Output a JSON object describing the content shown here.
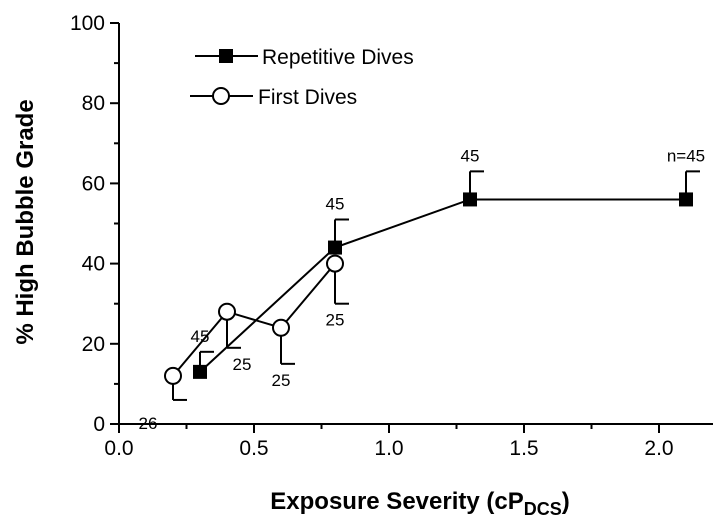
{
  "chart_data": {
    "type": "line",
    "title": "",
    "xlabel": "Exposure Severity (cP",
    "xlabel_subscript": "DCS",
    "xlabel_suffix": ")",
    "ylabel": "% High Bubble Grade",
    "xlim": [
      0.0,
      2.2
    ],
    "ylim": [
      0,
      100
    ],
    "x_ticks": [
      0.0,
      0.5,
      1.0,
      1.5,
      2.0
    ],
    "x_tick_labels": [
      "0.0",
      "0.5",
      "1.0",
      "1.5",
      "2.0"
    ],
    "y_ticks": [
      0,
      20,
      40,
      60,
      80,
      100
    ],
    "y_tick_labels": [
      "0",
      "20",
      "40",
      "60",
      "80",
      "100"
    ],
    "grid": false,
    "legend_position": "top-left",
    "series": [
      {
        "name": "Repetitive Dives",
        "marker": "filled-square",
        "x": [
          0.3,
          0.8,
          1.3,
          2.1
        ],
        "y": [
          13,
          44,
          56,
          56
        ],
        "error_upper": [
          18,
          51,
          63,
          63
        ],
        "n_labels": [
          {
            "x": 0.3,
            "label": "45",
            "side": "above"
          },
          {
            "x": 0.8,
            "label": "45",
            "side": "above"
          },
          {
            "x": 1.3,
            "label": "45",
            "side": "above"
          },
          {
            "x": 2.1,
            "label": "n=45",
            "side": "above"
          }
        ]
      },
      {
        "name": "First Dives",
        "marker": "open-circle",
        "x": [
          0.2,
          0.4,
          0.6,
          0.8
        ],
        "y": [
          12,
          28,
          24,
          40
        ],
        "error_lower": [
          6,
          19,
          15,
          30
        ],
        "n_labels": [
          {
            "x": 0.2,
            "label": "26",
            "side": "below"
          },
          {
            "x": 0.4,
            "label": "25",
            "side": "below"
          },
          {
            "x": 0.6,
            "label": "25",
            "side": "below"
          },
          {
            "x": 0.8,
            "label": "25",
            "side": "below"
          }
        ]
      }
    ]
  }
}
